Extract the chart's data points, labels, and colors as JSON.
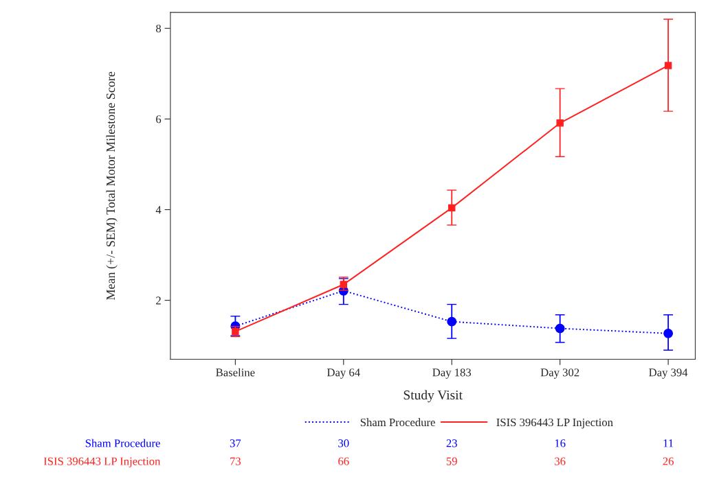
{
  "chart_data": {
    "type": "line",
    "xlabel": "Study Visit",
    "ylabel": "Mean (+/- SEM) Total Motor Milestone Score",
    "categories": [
      "Baseline",
      "Day 64",
      "Day 183",
      "Day 302",
      "Day 394"
    ],
    "ylim": [
      0.7,
      8.35
    ],
    "yticks": [
      2,
      4,
      6,
      8
    ],
    "series": [
      {
        "name": "Sham Procedure",
        "color": "#0000ff",
        "marker": "circle",
        "line_style": "dotted",
        "values": [
          1.43,
          2.21,
          1.53,
          1.38,
          1.27
        ],
        "errors": [
          [
            1.22,
            1.65
          ],
          [
            1.91,
            2.48
          ],
          [
            1.16,
            1.91
          ],
          [
            1.07,
            1.68
          ],
          [
            0.9,
            1.68
          ]
        ]
      },
      {
        "name": "ISIS 396443 LP Injection",
        "color": "#ff2020",
        "marker": "square",
        "line_style": "solid",
        "values": [
          1.31,
          2.35,
          4.04,
          5.91,
          7.18
        ],
        "errors": [
          [
            1.2,
            1.42
          ],
          [
            2.22,
            2.51
          ],
          [
            3.66,
            4.43
          ],
          [
            5.17,
            6.67
          ],
          [
            6.17,
            8.2
          ]
        ]
      }
    ],
    "legend": "bottom",
    "grid": false,
    "annotations": [
      "Sham Procedure",
      "37",
      "30",
      "23",
      "16",
      "11",
      "ISIS 396443 LP Injection",
      "73",
      "66",
      "59",
      "36",
      "26"
    ]
  }
}
